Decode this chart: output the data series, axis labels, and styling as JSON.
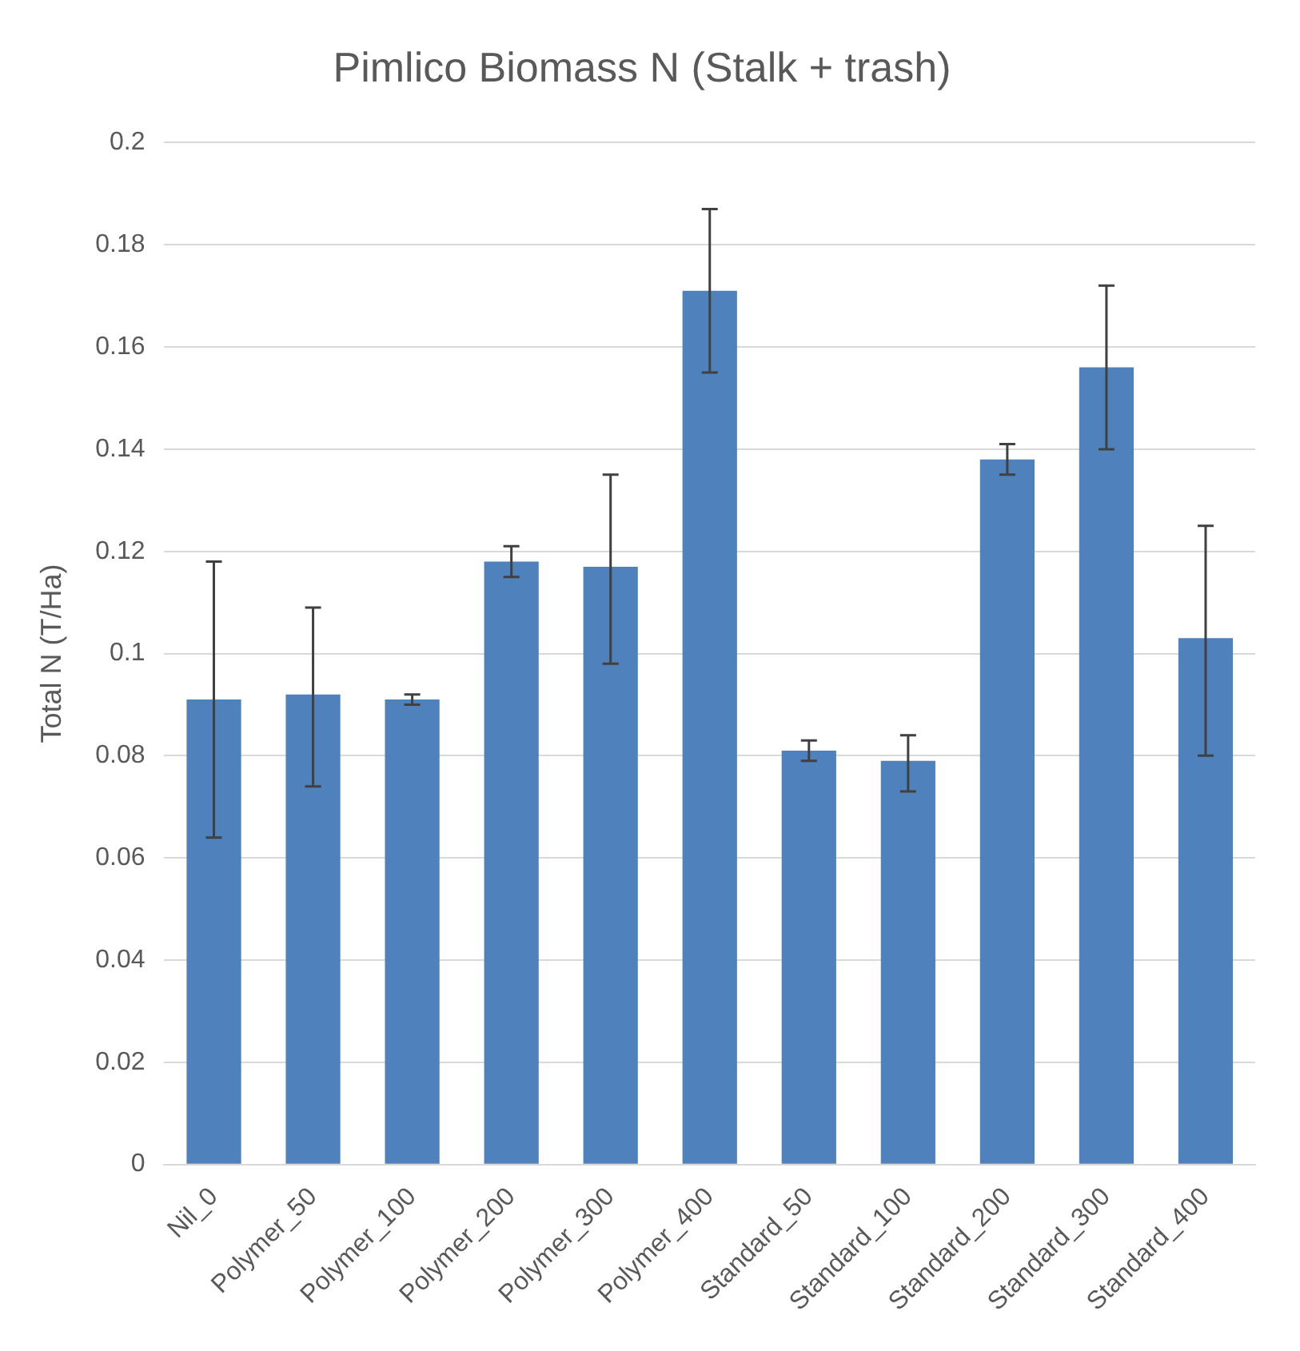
{
  "chart_data": {
    "type": "bar",
    "title": "Pimlico Biomass N (Stalk + trash)",
    "ylabel": "Total N (T/Ha)",
    "categories": [
      "Nil_0",
      "Polymer_50",
      "Polymer_100",
      "Polymer_200",
      "Polymer_300",
      "Polymer_400",
      "Standard_50",
      "Standard_100",
      "Standard_200",
      "Standard_300",
      "Standard_400"
    ],
    "values": [
      0.091,
      0.092,
      0.091,
      0.118,
      0.117,
      0.171,
      0.081,
      0.079,
      0.138,
      0.156,
      0.103
    ],
    "errors": [
      [
        0.064,
        0.118
      ],
      [
        0.074,
        0.109
      ],
      [
        0.09,
        0.092
      ],
      [
        0.115,
        0.121
      ],
      [
        0.098,
        0.135
      ],
      [
        0.155,
        0.187
      ],
      [
        0.079,
        0.083
      ],
      [
        0.073,
        0.084
      ],
      [
        0.135,
        0.141
      ],
      [
        0.14,
        0.172
      ],
      [
        0.08,
        0.125
      ]
    ],
    "color": "#4f81bd",
    "ylim": [
      0,
      0.2
    ],
    "yticks": [
      0,
      0.02,
      0.04,
      0.06,
      0.08,
      0.1,
      0.12,
      0.14,
      0.16,
      0.18,
      0.2
    ],
    "grid": "y",
    "legend": false
  }
}
